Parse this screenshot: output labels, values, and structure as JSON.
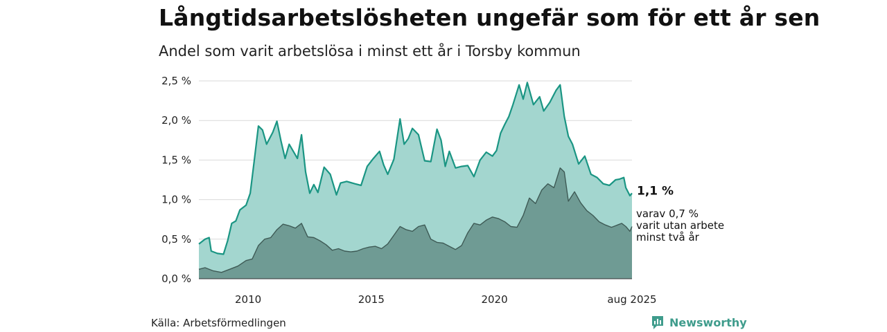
{
  "header": {
    "title": "Långtidsarbetslösheten ungefär som för ett år sen",
    "subtitle": "Andel som varit arbetslösa i minst ett år i Torsby kommun"
  },
  "footer": {
    "source": "Källa: Arbetsförmedlingen",
    "brand": "Newsworthy"
  },
  "colors": {
    "upper_line": "#1a9583",
    "upper_fill": "#a3d6cf",
    "lower_line": "#3e5a55",
    "lower_fill": "#6f9b94",
    "grid": "#d9d9d9",
    "brand": "#3f9c8c"
  },
  "annotations": {
    "end_value": "1,1 %",
    "sub_lines": [
      "varav 0,7 %",
      "varit utan arbete",
      "minst två år"
    ]
  },
  "chart_data": {
    "type": "area",
    "title": "Långtidsarbetslösheten ungefär som för ett år sen",
    "subtitle": "Andel som varit arbetslösa i minst ett år i Torsby kommun",
    "xlabel": "",
    "ylabel": "",
    "ylim": [
      0,
      2.5
    ],
    "y_ticks": [
      0,
      0.5,
      1.0,
      1.5,
      2.0,
      2.5
    ],
    "y_tick_labels": [
      "0,0 %",
      "0,5 %",
      "1,0 %",
      "1,5 %",
      "2,0 %",
      "2,5 %"
    ],
    "x_range": [
      "2008-01",
      "2025-08"
    ],
    "x_ticks": [
      {
        "date": "2010-01",
        "label": "2010"
      },
      {
        "date": "2015-01",
        "label": "2015"
      },
      {
        "date": "2020-01",
        "label": "2020"
      },
      {
        "date": "2025-08",
        "label": "aug 2025"
      }
    ],
    "grid": true,
    "legend": "none",
    "series": [
      {
        "points": [
          [
            "2008-01",
            0.44
          ],
          [
            "2008-04",
            0.5
          ],
          [
            "2008-06",
            0.52
          ],
          [
            "2008-07",
            0.35
          ],
          [
            "2008-10",
            0.32
          ],
          [
            "2009-01",
            0.31
          ],
          [
            "2009-03",
            0.48
          ],
          [
            "2009-05",
            0.7
          ],
          [
            "2009-07",
            0.73
          ],
          [
            "2009-09",
            0.87
          ],
          [
            "2009-12",
            0.93
          ],
          [
            "2010-02",
            1.08
          ],
          [
            "2010-04",
            1.5
          ],
          [
            "2010-06",
            1.93
          ],
          [
            "2010-08",
            1.88
          ],
          [
            "2010-10",
            1.7
          ],
          [
            "2011-01",
            1.85
          ],
          [
            "2011-03",
            1.99
          ],
          [
            "2011-05",
            1.74
          ],
          [
            "2011-07",
            1.52
          ],
          [
            "2011-09",
            1.7
          ],
          [
            "2012-01",
            1.52
          ],
          [
            "2012-03",
            1.82
          ],
          [
            "2012-05",
            1.35
          ],
          [
            "2012-07",
            1.08
          ],
          [
            "2012-09",
            1.19
          ],
          [
            "2012-11",
            1.09
          ],
          [
            "2013-02",
            1.41
          ],
          [
            "2013-05",
            1.32
          ],
          [
            "2013-08",
            1.06
          ],
          [
            "2013-10",
            1.21
          ],
          [
            "2014-01",
            1.23
          ],
          [
            "2014-05",
            1.2
          ],
          [
            "2014-08",
            1.18
          ],
          [
            "2014-11",
            1.42
          ],
          [
            "2015-02",
            1.52
          ],
          [
            "2015-05",
            1.61
          ],
          [
            "2015-07",
            1.44
          ],
          [
            "2015-09",
            1.32
          ],
          [
            "2015-12",
            1.51
          ],
          [
            "2016-03",
            2.02
          ],
          [
            "2016-05",
            1.7
          ],
          [
            "2016-07",
            1.77
          ],
          [
            "2016-09",
            1.9
          ],
          [
            "2016-12",
            1.82
          ],
          [
            "2017-03",
            1.49
          ],
          [
            "2017-06",
            1.48
          ],
          [
            "2017-09",
            1.89
          ],
          [
            "2017-11",
            1.75
          ],
          [
            "2018-01",
            1.42
          ],
          [
            "2018-03",
            1.61
          ],
          [
            "2018-06",
            1.4
          ],
          [
            "2018-09",
            1.42
          ],
          [
            "2018-12",
            1.43
          ],
          [
            "2019-03",
            1.29
          ],
          [
            "2019-06",
            1.5
          ],
          [
            "2019-09",
            1.6
          ],
          [
            "2019-12",
            1.55
          ],
          [
            "2020-02",
            1.62
          ],
          [
            "2020-04",
            1.84
          ],
          [
            "2020-06",
            1.95
          ],
          [
            "2020-08",
            2.05
          ],
          [
            "2020-10",
            2.2
          ],
          [
            "2021-01",
            2.45
          ],
          [
            "2021-03",
            2.27
          ],
          [
            "2021-05",
            2.48
          ],
          [
            "2021-08",
            2.2
          ],
          [
            "2021-11",
            2.3
          ],
          [
            "2022-01",
            2.12
          ],
          [
            "2022-04",
            2.23
          ],
          [
            "2022-07",
            2.38
          ],
          [
            "2022-09",
            2.45
          ],
          [
            "2022-11",
            2.05
          ],
          [
            "2023-01",
            1.8
          ],
          [
            "2023-03",
            1.7
          ],
          [
            "2023-06",
            1.45
          ],
          [
            "2023-09",
            1.55
          ],
          [
            "2023-12",
            1.32
          ],
          [
            "2024-03",
            1.28
          ],
          [
            "2024-06",
            1.2
          ],
          [
            "2024-09",
            1.18
          ],
          [
            "2024-12",
            1.25
          ],
          [
            "2025-02",
            1.26
          ],
          [
            "2025-04",
            1.28
          ],
          [
            "2025-05",
            1.15
          ],
          [
            "2025-07",
            1.05
          ],
          [
            "2025-08",
            1.08
          ]
        ]
      },
      {
        "points": [
          [
            "2008-01",
            0.12
          ],
          [
            "2008-04",
            0.14
          ],
          [
            "2008-08",
            0.1
          ],
          [
            "2008-12",
            0.08
          ],
          [
            "2009-04",
            0.12
          ],
          [
            "2009-08",
            0.16
          ],
          [
            "2009-12",
            0.23
          ],
          [
            "2010-03",
            0.25
          ],
          [
            "2010-06",
            0.42
          ],
          [
            "2010-09",
            0.5
          ],
          [
            "2010-12",
            0.52
          ],
          [
            "2011-03",
            0.62
          ],
          [
            "2011-06",
            0.69
          ],
          [
            "2011-09",
            0.67
          ],
          [
            "2011-12",
            0.64
          ],
          [
            "2012-03",
            0.7
          ],
          [
            "2012-06",
            0.53
          ],
          [
            "2012-09",
            0.52
          ],
          [
            "2012-12",
            0.48
          ],
          [
            "2013-03",
            0.43
          ],
          [
            "2013-06",
            0.36
          ],
          [
            "2013-09",
            0.38
          ],
          [
            "2013-12",
            0.35
          ],
          [
            "2014-03",
            0.34
          ],
          [
            "2014-06",
            0.35
          ],
          [
            "2014-09",
            0.38
          ],
          [
            "2014-12",
            0.4
          ],
          [
            "2015-03",
            0.41
          ],
          [
            "2015-06",
            0.38
          ],
          [
            "2015-09",
            0.44
          ],
          [
            "2015-12",
            0.55
          ],
          [
            "2016-03",
            0.66
          ],
          [
            "2016-06",
            0.62
          ],
          [
            "2016-09",
            0.6
          ],
          [
            "2016-12",
            0.66
          ],
          [
            "2017-03",
            0.68
          ],
          [
            "2017-06",
            0.5
          ],
          [
            "2017-09",
            0.46
          ],
          [
            "2017-12",
            0.45
          ],
          [
            "2018-03",
            0.41
          ],
          [
            "2018-06",
            0.37
          ],
          [
            "2018-09",
            0.42
          ],
          [
            "2018-12",
            0.58
          ],
          [
            "2019-03",
            0.7
          ],
          [
            "2019-06",
            0.68
          ],
          [
            "2019-09",
            0.74
          ],
          [
            "2019-12",
            0.78
          ],
          [
            "2020-03",
            0.76
          ],
          [
            "2020-06",
            0.72
          ],
          [
            "2020-09",
            0.66
          ],
          [
            "2020-12",
            0.65
          ],
          [
            "2021-03",
            0.8
          ],
          [
            "2021-06",
            1.02
          ],
          [
            "2021-09",
            0.95
          ],
          [
            "2021-12",
            1.12
          ],
          [
            "2022-03",
            1.2
          ],
          [
            "2022-06",
            1.15
          ],
          [
            "2022-09",
            1.4
          ],
          [
            "2022-11",
            1.35
          ],
          [
            "2023-01",
            0.98
          ],
          [
            "2023-04",
            1.1
          ],
          [
            "2023-07",
            0.96
          ],
          [
            "2023-10",
            0.86
          ],
          [
            "2024-01",
            0.8
          ],
          [
            "2024-04",
            0.72
          ],
          [
            "2024-07",
            0.68
          ],
          [
            "2024-10",
            0.65
          ],
          [
            "2025-01",
            0.68
          ],
          [
            "2025-03",
            0.7
          ],
          [
            "2025-05",
            0.66
          ],
          [
            "2025-07",
            0.6
          ],
          [
            "2025-08",
            0.66
          ]
        ]
      }
    ]
  }
}
